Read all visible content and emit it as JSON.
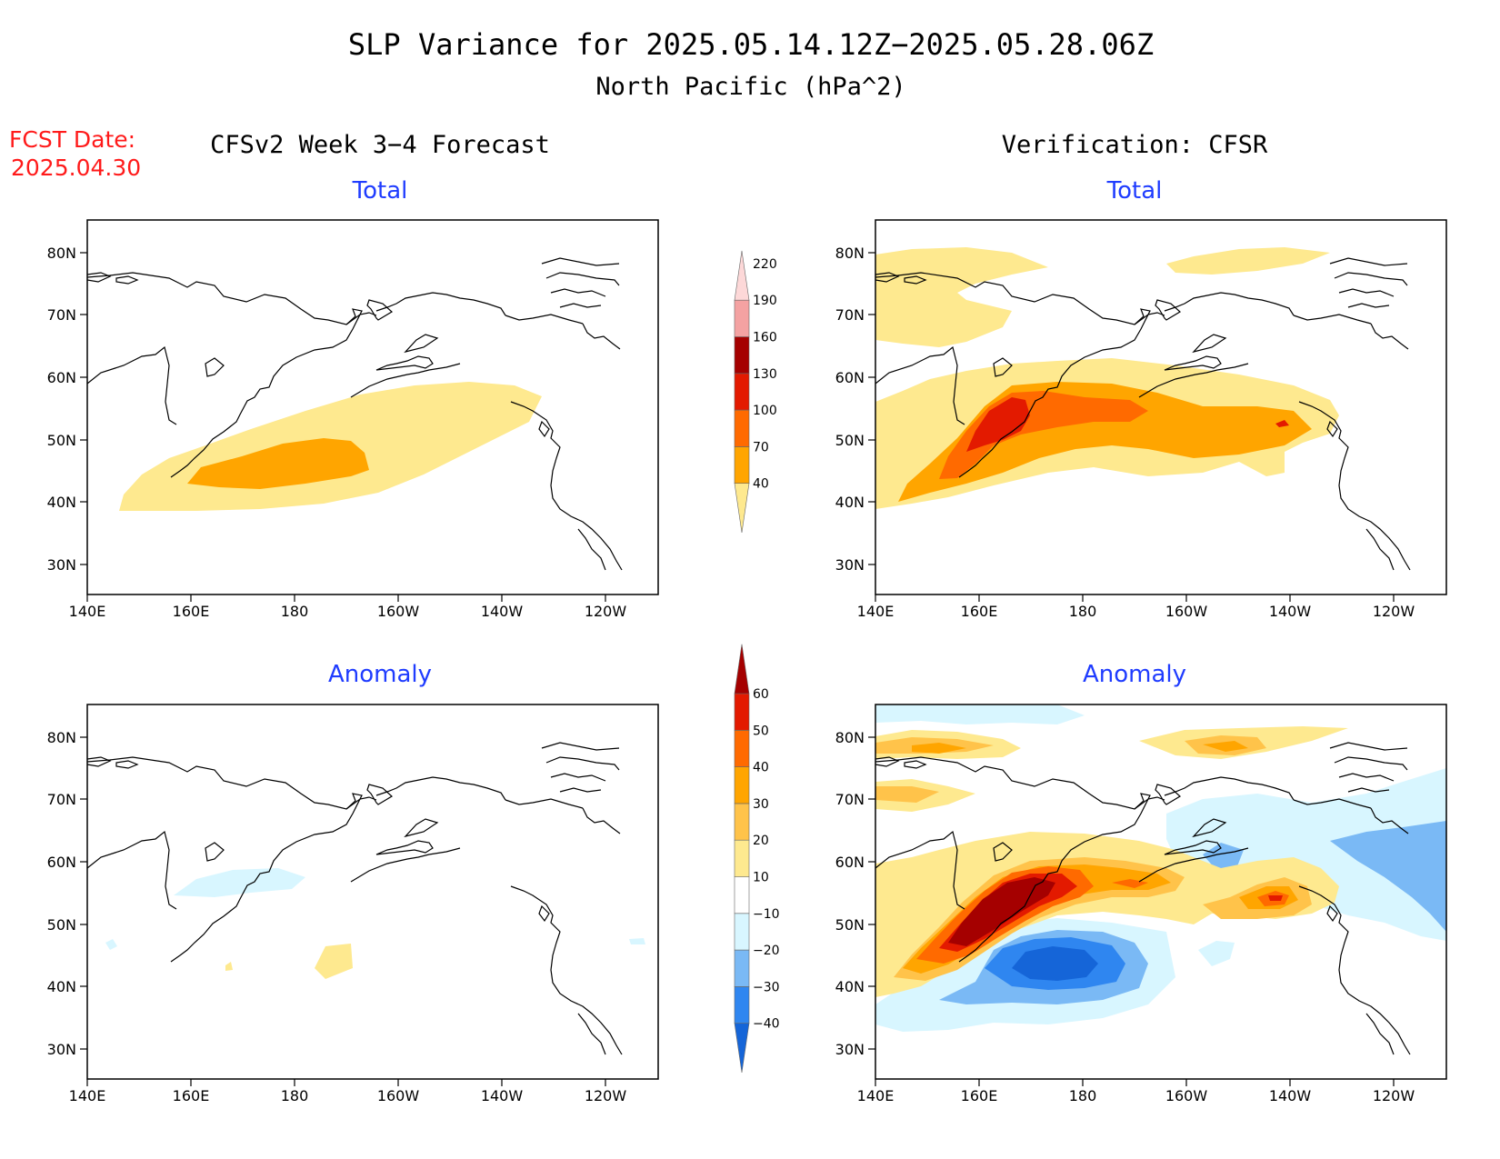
{
  "header": {
    "title": "SLP Variance for 2025.05.14.12Z−2025.05.28.06Z",
    "subtitle": "North Pacific (hPa^2)"
  },
  "fcst": {
    "line1": "FCST Date:",
    "line2": "2025.04.30"
  },
  "columns": {
    "left": "CFSv2 Week 3−4 Forecast",
    "right": "Verification: CFSR"
  },
  "panels": {
    "top_left": "Total",
    "top_right": "Total",
    "bottom_left": "Anomaly",
    "bottom_right": "Anomaly"
  },
  "axes": {
    "lon_labels": [
      "140E",
      "160E",
      "180",
      "160W",
      "140W",
      "120W"
    ],
    "lat_labels": [
      "80N",
      "70N",
      "60N",
      "50N",
      "40N",
      "30N"
    ]
  },
  "colorbar_total": {
    "labels": [
      "40",
      "70",
      "100",
      "130",
      "160",
      "190",
      "220"
    ],
    "colors": [
      "#fee98f",
      "#ffa500",
      "#ff6a00",
      "#e31a00",
      "#a50000",
      "#f4a2a2",
      "#fdd8d8"
    ]
  },
  "colorbar_anom": {
    "labels": [
      "−40",
      "−30",
      "−20",
      "−10",
      "10",
      "20",
      "30",
      "40",
      "50",
      "60"
    ],
    "colors": [
      "#1565d8",
      "#2f86f0",
      "#7ab9f5",
      "#d8f6ff",
      "#ffffff",
      "#fee98f",
      "#ffc34a",
      "#ffa500",
      "#ff6a00",
      "#e31a00",
      "#a50000"
    ]
  }
}
